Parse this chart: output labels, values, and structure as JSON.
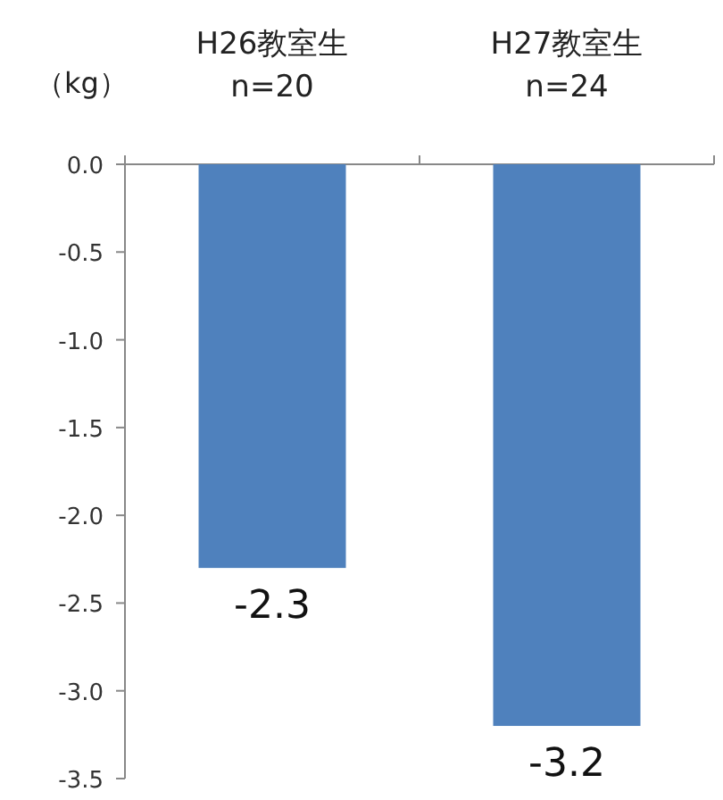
{
  "chart_data": {
    "type": "bar",
    "ylabel": "（kg）",
    "categories": [
      "H26教室生\nn=20",
      "H27教室生\nn=24"
    ],
    "values": [
      -2.3,
      -3.2
    ],
    "color": "#4f81bd",
    "ylim": [
      -3.5,
      0
    ],
    "yticks": [
      {
        "value": 0,
        "label": "0.0"
      },
      {
        "value": -0.5,
        "label": "-0.5"
      },
      {
        "value": -1,
        "label": "-1.0"
      },
      {
        "value": -1.5,
        "label": "-1.5"
      },
      {
        "value": -2,
        "label": "-2.0"
      },
      {
        "value": -2.5,
        "label": "-2.5"
      },
      {
        "value": -3,
        "label": "-3.0"
      },
      {
        "value": -3.5,
        "label": "-3.5"
      }
    ],
    "data_labels": true
  }
}
